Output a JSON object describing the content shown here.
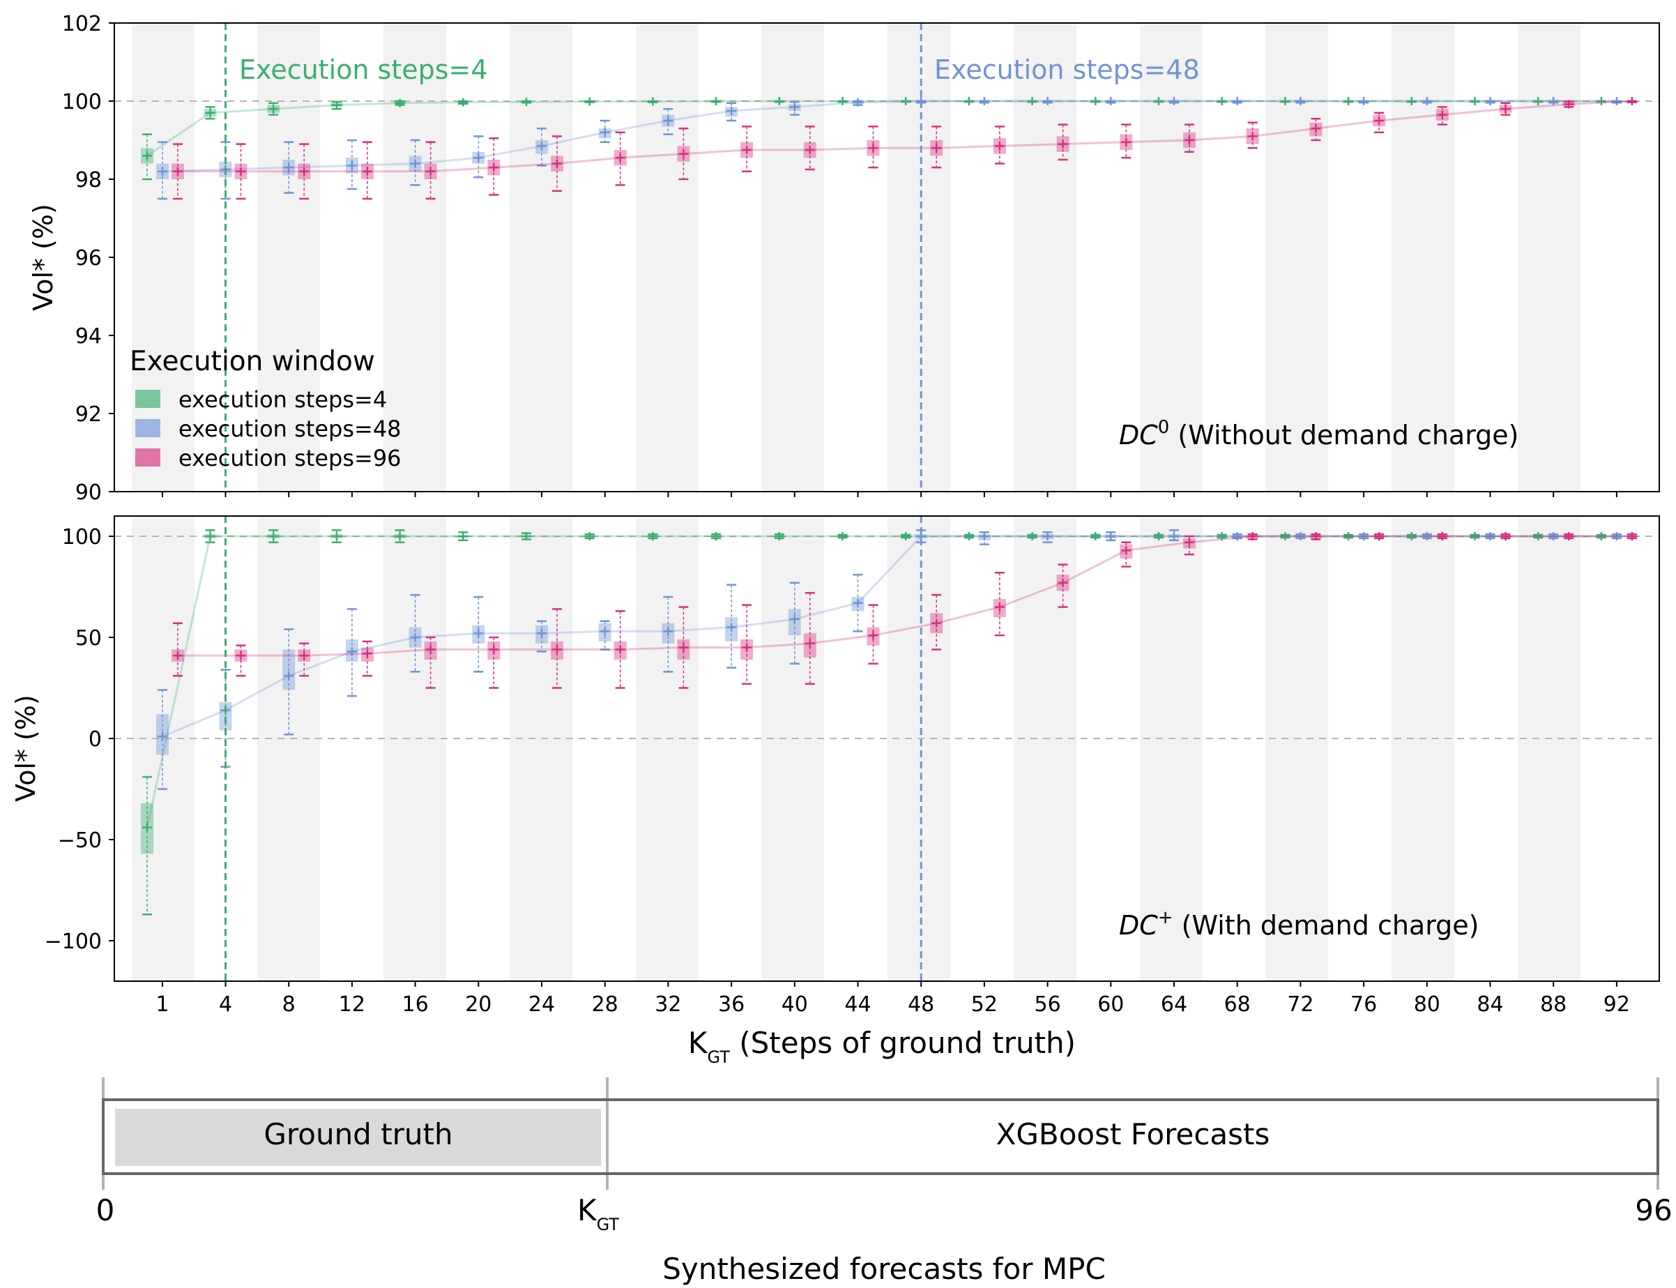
{
  "colors": {
    "green": "#3aaf6f",
    "blue": "#6f93d6",
    "pink": "#d6307f",
    "band": "#f2f2f2",
    "grid": "#b5b5b5",
    "gt_box": "#d9d9d9"
  },
  "chart_data": [
    {
      "type": "box",
      "ylabel": "Vol* (%)",
      "ylim": [
        90,
        102
      ],
      "yticks": [
        "90",
        "92",
        "94",
        "96",
        "98",
        "100",
        "102"
      ],
      "yticks_values": [
        90,
        92,
        94,
        96,
        98,
        100,
        102
      ],
      "hline": 100,
      "annotation": {
        "prefix": "DC",
        "sup": "0",
        "text": " (Without demand charge)"
      },
      "legend": {
        "title": "Execution window",
        "entries": [
          "execution steps=4",
          "execution steps=48",
          "execution steps=96"
        ]
      },
      "vlines": [
        {
          "x": 4,
          "label": "Execution steps=4",
          "series": "green"
        },
        {
          "x": 48,
          "label": "Execution steps=48",
          "series": "blue"
        }
      ],
      "series": [
        {
          "name": "execution steps=4",
          "color_key": "green",
          "x": [
            1,
            4,
            8,
            12,
            16,
            20,
            24,
            28,
            32,
            36,
            40,
            44,
            48,
            52,
            56,
            60,
            64,
            68,
            72,
            76,
            80,
            84,
            88,
            92
          ],
          "median": [
            98.6,
            99.7,
            99.8,
            99.9,
            99.95,
            99.97,
            99.98,
            99.99,
            99.99,
            100,
            100,
            100,
            100,
            100,
            100,
            100,
            100,
            100,
            100,
            100,
            100,
            100,
            100,
            100
          ],
          "q1": [
            98.4,
            99.6,
            99.7,
            99.85,
            99.92,
            99.95,
            99.97,
            99.98,
            99.98,
            99.99,
            99.99,
            99.99,
            99.99,
            99.99,
            99.99,
            99.99,
            99.99,
            99.99,
            99.99,
            99.99,
            99.99,
            99.99,
            99.99,
            99.99
          ],
          "q3": [
            98.8,
            99.8,
            99.9,
            99.95,
            99.98,
            99.99,
            99.99,
            100,
            100,
            100,
            100,
            100,
            100,
            100,
            100,
            100,
            100,
            100,
            100,
            100,
            100,
            100,
            100,
            100
          ],
          "min": [
            98.0,
            99.55,
            99.65,
            99.8,
            99.9,
            99.93,
            99.96,
            99.97,
            99.97,
            99.98,
            99.98,
            99.98,
            99.98,
            99.98,
            99.98,
            99.98,
            99.98,
            99.98,
            99.98,
            99.98,
            99.98,
            99.98,
            99.98,
            99.98
          ],
          "max": [
            99.15,
            99.85,
            99.95,
            99.98,
            100,
            100,
            100,
            100,
            100,
            100,
            100,
            100,
            100,
            100,
            100,
            100,
            100,
            100,
            100,
            100,
            100,
            100,
            100,
            100
          ]
        },
        {
          "name": "execution steps=48",
          "color_key": "blue",
          "x": [
            1,
            4,
            8,
            12,
            16,
            20,
            24,
            28,
            32,
            36,
            40,
            44,
            48,
            52,
            56,
            60,
            64,
            68,
            72,
            76,
            80,
            84,
            88,
            92
          ],
          "median": [
            98.2,
            98.25,
            98.3,
            98.35,
            98.4,
            98.55,
            98.85,
            99.2,
            99.5,
            99.75,
            99.85,
            99.97,
            100,
            100,
            100,
            100,
            100,
            100,
            100,
            100,
            100,
            100,
            100,
            100
          ],
          "q1": [
            98.0,
            98.05,
            98.1,
            98.15,
            98.2,
            98.4,
            98.65,
            99.05,
            99.35,
            99.6,
            99.75,
            99.93,
            99.98,
            99.98,
            99.98,
            99.98,
            99.98,
            99.98,
            99.98,
            99.98,
            99.98,
            99.98,
            99.98,
            99.98
          ],
          "q3": [
            98.4,
            98.45,
            98.5,
            98.55,
            98.6,
            98.7,
            99.0,
            99.3,
            99.65,
            99.85,
            99.92,
            100,
            100,
            100,
            100,
            100,
            100,
            100,
            100,
            100,
            100,
            100,
            100,
            100
          ],
          "min": [
            97.5,
            97.5,
            97.65,
            97.75,
            97.85,
            98.05,
            98.35,
            98.95,
            99.15,
            99.5,
            99.65,
            99.9,
            99.96,
            99.96,
            99.96,
            99.96,
            99.96,
            99.96,
            99.96,
            99.96,
            99.96,
            99.96,
            99.96,
            99.96
          ],
          "max": [
            98.95,
            98.95,
            98.95,
            99.0,
            99.0,
            99.1,
            99.3,
            99.5,
            99.8,
            99.95,
            99.98,
            100,
            100,
            100,
            100,
            100,
            100,
            100,
            100,
            100,
            100,
            100,
            100,
            100
          ]
        },
        {
          "name": "execution steps=96",
          "color_key": "pink",
          "x": [
            1,
            4,
            8,
            12,
            16,
            20,
            24,
            28,
            32,
            36,
            40,
            44,
            48,
            52,
            56,
            60,
            64,
            68,
            72,
            76,
            80,
            84,
            88,
            92
          ],
          "median": [
            98.2,
            98.2,
            98.2,
            98.2,
            98.2,
            98.3,
            98.4,
            98.55,
            98.65,
            98.75,
            98.75,
            98.8,
            98.8,
            98.85,
            98.9,
            98.95,
            99.0,
            99.1,
            99.3,
            99.5,
            99.65,
            99.8,
            99.92,
            100
          ],
          "q1": [
            98.0,
            98.0,
            98.0,
            98.0,
            98.0,
            98.1,
            98.2,
            98.35,
            98.45,
            98.55,
            98.55,
            98.6,
            98.6,
            98.65,
            98.7,
            98.75,
            98.8,
            98.9,
            99.1,
            99.35,
            99.5,
            99.7,
            99.88,
            99.98
          ],
          "q3": [
            98.4,
            98.4,
            98.4,
            98.4,
            98.4,
            98.5,
            98.6,
            98.75,
            98.85,
            98.95,
            98.95,
            99.0,
            99.0,
            99.05,
            99.1,
            99.15,
            99.2,
            99.3,
            99.45,
            99.65,
            99.8,
            99.9,
            99.97,
            100
          ],
          "min": [
            97.5,
            97.5,
            97.5,
            97.5,
            97.5,
            97.6,
            97.7,
            97.85,
            98.0,
            98.2,
            98.25,
            98.3,
            98.3,
            98.4,
            98.5,
            98.55,
            98.7,
            98.8,
            99.0,
            99.2,
            99.4,
            99.65,
            99.85,
            99.97
          ],
          "max": [
            98.9,
            98.9,
            98.9,
            98.95,
            98.95,
            99.05,
            99.1,
            99.2,
            99.3,
            99.35,
            99.35,
            99.35,
            99.35,
            99.35,
            99.4,
            99.4,
            99.4,
            99.45,
            99.55,
            99.7,
            99.85,
            99.95,
            99.99,
            100
          ]
        }
      ]
    },
    {
      "type": "box",
      "ylabel": "Vol* (%)",
      "ylim": [
        -120,
        110
      ],
      "yticks": [
        "−100",
        "−50",
        "0",
        "50",
        "100"
      ],
      "yticks_values": [
        -100,
        -50,
        0,
        50,
        100
      ],
      "hline": 100,
      "hline_zero": 0,
      "annotation": {
        "prefix": "DC",
        "sup": "+",
        "text": "  (With demand charge)"
      },
      "xlabel": "K",
      "xlabel_sub": "GT",
      "xlabel_rest": "  (Steps of ground truth)",
      "xticks": [
        "1",
        "4",
        "8",
        "12",
        "16",
        "20",
        "24",
        "28",
        "32",
        "36",
        "40",
        "44",
        "48",
        "52",
        "56",
        "60",
        "64",
        "68",
        "72",
        "76",
        "80",
        "84",
        "88",
        "92"
      ],
      "xticks_values": [
        1,
        4,
        8,
        12,
        16,
        20,
        24,
        28,
        32,
        36,
        40,
        44,
        48,
        52,
        56,
        60,
        64,
        68,
        72,
        76,
        80,
        84,
        88,
        92
      ],
      "vlines": [
        {
          "x": 4,
          "series": "green"
        },
        {
          "x": 48,
          "series": "blue"
        }
      ],
      "series": [
        {
          "name": "execution steps=4",
          "color_key": "green",
          "x": [
            1,
            4,
            8,
            12,
            16,
            20,
            24,
            28,
            32,
            36,
            40,
            44,
            48,
            52,
            56,
            60,
            64,
            68,
            72,
            76,
            80,
            84,
            88,
            92
          ],
          "median": [
            -44,
            100,
            100,
            100,
            100,
            100,
            100,
            100,
            100,
            100,
            100,
            100,
            100,
            100,
            100,
            100,
            100,
            100,
            100,
            100,
            100,
            100,
            100,
            100
          ],
          "q1": [
            -57,
            99,
            99,
            99,
            99,
            99.3,
            99.5,
            99.6,
            99.6,
            99.6,
            99.6,
            99.7,
            99.7,
            99.7,
            99.7,
            99.7,
            99.7,
            99.7,
            99.7,
            99.7,
            99.7,
            99.7,
            99.7,
            99.7
          ],
          "q3": [
            -32,
            101,
            101,
            101,
            101,
            100.5,
            100.5,
            100.4,
            100.4,
            100.4,
            100.4,
            100.3,
            100.3,
            100.3,
            100.3,
            100.3,
            100.3,
            100.3,
            100.3,
            100.3,
            100.3,
            100.3,
            100.3,
            100.3
          ],
          "min": [
            -87,
            97,
            97,
            97,
            97,
            98,
            98.5,
            99,
            99,
            99,
            99,
            99.3,
            99.3,
            99.3,
            99.3,
            99.3,
            99.3,
            99.3,
            99.3,
            99.3,
            99.3,
            99.3,
            99.3,
            99.3
          ],
          "max": [
            -19,
            103,
            103,
            103,
            103,
            102,
            101.5,
            101,
            101,
            101,
            101,
            100.7,
            100.7,
            100.7,
            100.7,
            100.7,
            100.7,
            100.7,
            100.7,
            100.7,
            100.7,
            100.7,
            100.7,
            100.7
          ]
        },
        {
          "name": "execution steps=48",
          "color_key": "blue",
          "x": [
            1,
            4,
            8,
            12,
            16,
            20,
            24,
            28,
            32,
            36,
            40,
            44,
            48,
            52,
            56,
            60,
            64,
            68,
            72,
            76,
            80,
            84,
            88,
            92
          ],
          "median": [
            1,
            14,
            31,
            43,
            50,
            52,
            52,
            53,
            53,
            55,
            59,
            67,
            100,
            100,
            100,
            100,
            100,
            100,
            100,
            100,
            100,
            100,
            100,
            100
          ],
          "q1": [
            -8,
            4,
            24,
            38,
            45,
            47,
            47,
            48,
            47,
            48,
            51,
            63,
            99,
            98,
            98.5,
            99,
            99,
            99.5,
            99.5,
            99.5,
            99.5,
            99.5,
            99.5,
            99.5
          ],
          "q3": [
            12,
            18,
            44,
            49,
            55,
            56,
            56,
            57,
            57,
            60,
            64,
            70,
            101,
            101,
            101,
            101,
            101,
            100.5,
            100.5,
            100.5,
            100.5,
            100.5,
            100.5,
            100.5
          ],
          "min": [
            -25,
            -14,
            2,
            21,
            33,
            33,
            43,
            44,
            33,
            35,
            37,
            53,
            97,
            96,
            97,
            98,
            98,
            99,
            99,
            99,
            99,
            99,
            99,
            99
          ],
          "max": [
            24,
            34,
            54,
            64,
            71,
            70,
            58,
            58,
            70,
            76,
            77,
            81,
            103,
            102,
            102,
            102,
            103,
            101,
            101,
            101,
            101,
            101,
            101,
            101
          ]
        },
        {
          "name": "execution steps=96",
          "color_key": "pink",
          "x": [
            1,
            4,
            8,
            12,
            16,
            20,
            24,
            28,
            32,
            36,
            40,
            44,
            48,
            52,
            56,
            60,
            64,
            68,
            72,
            76,
            80,
            84,
            88,
            92
          ],
          "median": [
            41,
            41,
            41,
            42,
            44,
            44,
            44,
            44,
            45,
            45,
            47,
            51,
            57,
            65,
            77,
            93,
            97,
            100,
            100,
            100,
            100,
            100,
            100,
            100
          ],
          "q1": [
            38,
            38,
            38,
            38,
            39,
            39,
            39,
            39,
            39,
            39,
            40,
            46,
            52,
            60,
            73,
            89,
            94,
            99,
            99,
            99.5,
            99.5,
            99.5,
            99.5,
            99.5
          ],
          "q3": [
            44,
            44,
            44,
            45,
            48,
            48,
            48,
            48,
            49,
            49,
            52,
            55,
            62,
            69,
            81,
            96,
            99,
            100.5,
            100.5,
            100.5,
            100.5,
            100.5,
            100.5,
            100.5
          ],
          "min": [
            31,
            31,
            31,
            31,
            25,
            25,
            25,
            25,
            25,
            27,
            27,
            37,
            44,
            51,
            65,
            85,
            91,
            98.5,
            98.5,
            99,
            99,
            99,
            99,
            99
          ],
          "max": [
            57,
            46,
            47,
            48,
            50,
            50,
            64,
            63,
            65,
            66,
            72,
            66,
            71,
            82,
            86,
            97,
            100,
            101,
            101,
            101,
            101,
            101,
            101,
            101
          ]
        }
      ]
    }
  ],
  "footer": {
    "ground_truth_label": "Ground truth",
    "forecast_label": "XGBoost Forecasts",
    "tick_start": "0",
    "tick_mid": "K",
    "tick_mid_sub": "GT",
    "tick_end": "96",
    "caption": "Synthesized forecasts for MPC"
  }
}
